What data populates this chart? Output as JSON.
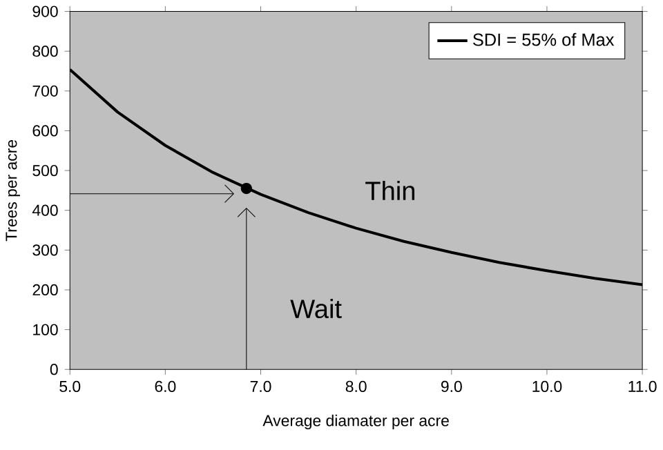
{
  "chart_data": {
    "type": "line",
    "xlabel": "Average diamater per acre",
    "ylabel": "Trees per acre",
    "xlim": [
      5,
      11
    ],
    "ylim": [
      0,
      900
    ],
    "xticks": [
      {
        "value": 5,
        "label": "5.0"
      },
      {
        "value": 6,
        "label": "6.0"
      },
      {
        "value": 7,
        "label": "7.0"
      },
      {
        "value": 8,
        "label": "8.0"
      },
      {
        "value": 9,
        "label": "9.0"
      },
      {
        "value": 10,
        "label": "10.0"
      },
      {
        "value": 11,
        "label": "11.0"
      }
    ],
    "yticks": [
      0,
      100,
      200,
      300,
      400,
      500,
      600,
      700,
      800,
      900
    ],
    "grid": false,
    "legend": "top right",
    "series": [
      {
        "name": "SDI = 55% of Max",
        "color": "#000000",
        "marker": "none",
        "x": [
          5.0,
          5.5,
          6.0,
          6.5,
          7.0,
          7.5,
          8.0,
          8.5,
          9.0,
          9.5,
          10.0,
          10.5,
          11.0
        ],
        "values": [
          754,
          647,
          563,
          495,
          440,
          394,
          355,
          322,
          294,
          269,
          248,
          229,
          213
        ]
      },
      {
        "type": "scatter",
        "color": "#000000",
        "marker": "circle",
        "x": [
          6.85
        ],
        "values": [
          455
        ]
      }
    ],
    "annotations": [
      "Thin",
      "Wait"
    ]
  }
}
